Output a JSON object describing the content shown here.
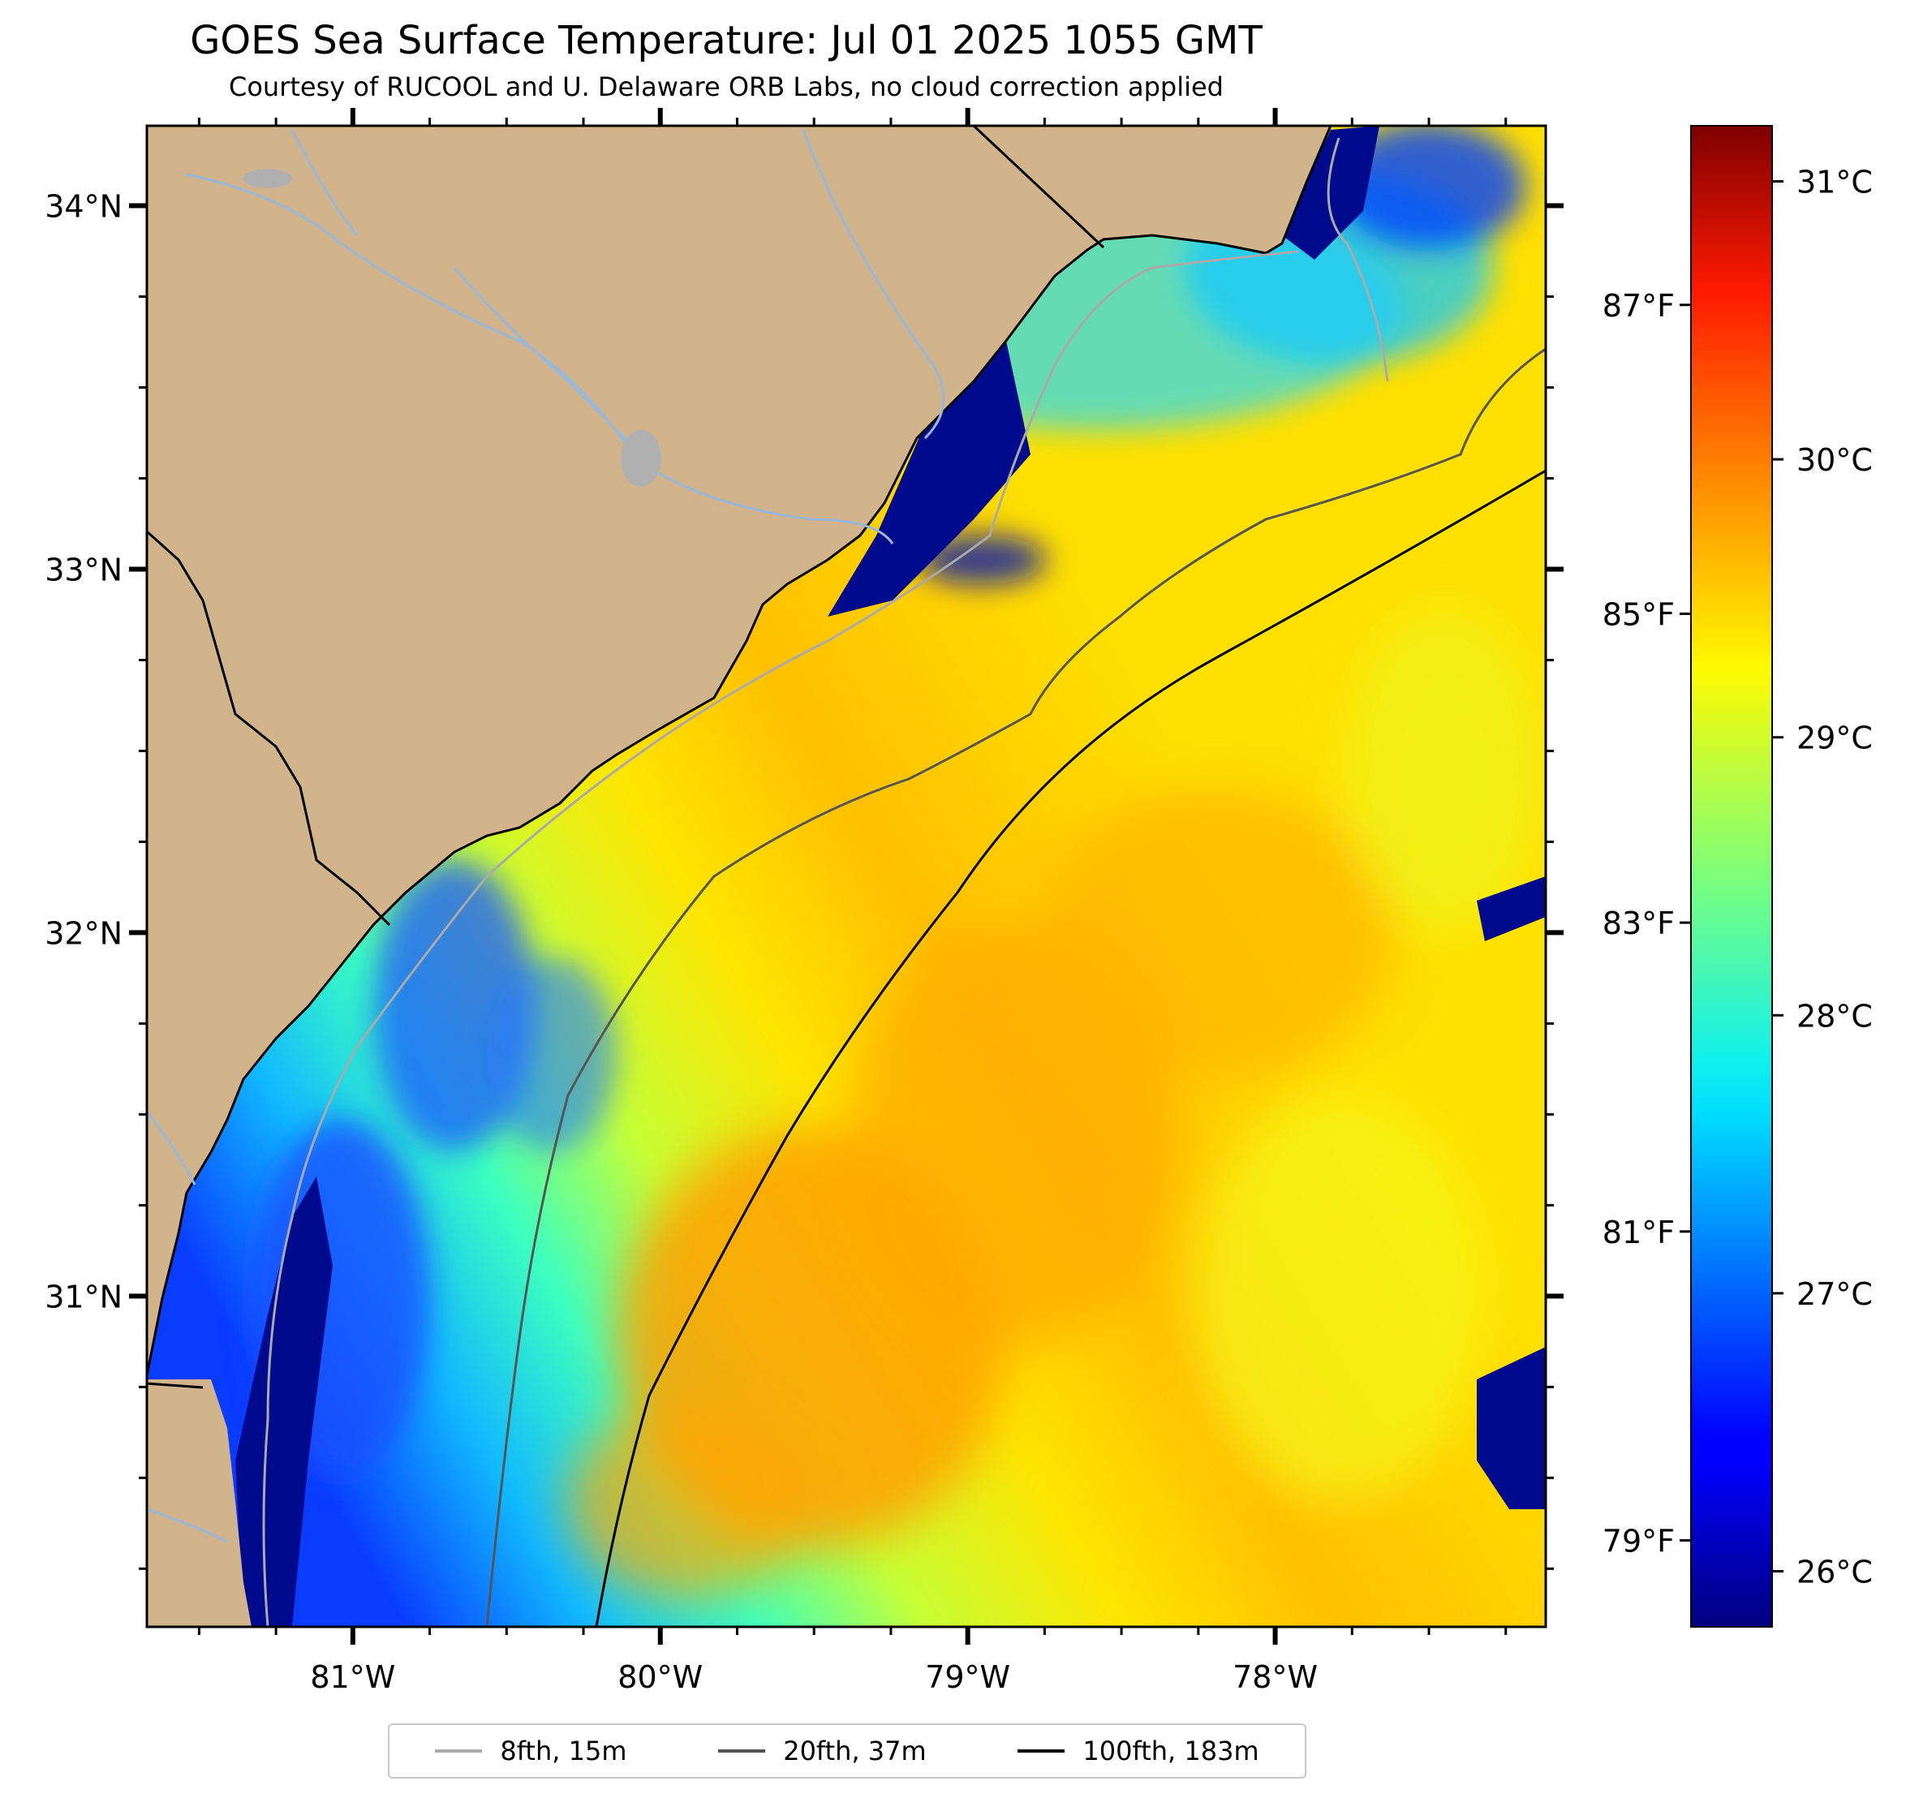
{
  "header": {
    "title": "GOES Sea Surface Temperature: Jul 01 2025 1055 GMT",
    "subtitle": "Courtesy of RUCOOL and U. Delaware ORB Labs, no cloud correction applied"
  },
  "map": {
    "lon_range": [
      -81.67,
      -77.12
    ],
    "lat_range": [
      30.09,
      34.22
    ],
    "lon_ticks": [
      "81°W",
      "80°W",
      "79°W",
      "78°W"
    ],
    "lon_tick_values": [
      -81,
      -80,
      -79,
      -78
    ],
    "lat_ticks": [
      "34°N",
      "33°N",
      "32°N",
      "31°N"
    ],
    "lat_tick_values": [
      34,
      33,
      32,
      31
    ],
    "land_color": "#d2b48c",
    "coast_color": "#000000",
    "river_color": "#9ab8d8"
  },
  "colorbar": {
    "celsius_labels": [
      "31°C",
      "30°C",
      "29°C",
      "28°C",
      "27°C",
      "26°C"
    ],
    "celsius_values": [
      31,
      30,
      29,
      28,
      27,
      26
    ],
    "fahrenheit_labels": [
      "87°F",
      "85°F",
      "83°F",
      "81°F",
      "79°F"
    ],
    "fahrenheit_values": [
      87,
      85,
      83,
      81,
      79
    ],
    "range_c": [
      25.8,
      31.2
    ],
    "colormap": "jet"
  },
  "legend": {
    "items": [
      {
        "label": "8fth, 15m",
        "color": "#aaaaaa"
      },
      {
        "label": "20fth, 37m",
        "color": "#555555"
      },
      {
        "label": "100fth, 183m",
        "color": "#000000"
      }
    ]
  }
}
